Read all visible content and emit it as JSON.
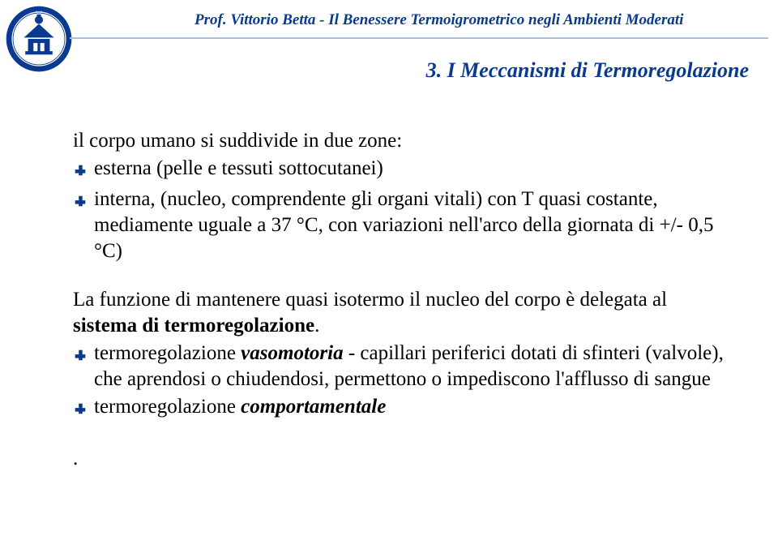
{
  "header": {
    "title": "Prof. Vittorio Betta - Il Benessere Termoigrometrico negli Ambienti Moderati",
    "color": "#0a3a8f"
  },
  "section_title": {
    "text": "3. I Meccanismi di Termoregolazione",
    "color": "#0a3a8f"
  },
  "body": {
    "intro": "il corpo umano si suddivide in due zone:",
    "bullets_1": [
      "esterna (pelle e tessuti sottocutanei)",
      "interna, (nucleo, comprendente gli organi vitali) con T quasi  costante, mediamente uguale a 37 °C, con variazioni nell'arco della giornata di +/- 0,5 °C)"
    ],
    "paragraph_prefix": "La funzione di mantenere quasi isotermo il nucleo del corpo è delegata al ",
    "paragraph_bold": "sistema di termoregolazione",
    "paragraph_suffix": ".",
    "bullets_2": [
      {
        "pre": "termoregolazione ",
        "em": "vasomotoria",
        "post": " - capillari periferici dotati di sfinteri (valvole), che aprendosi o chiudendosi, permettono o impediscono l'afflusso di sangue"
      },
      {
        "pre": "termoregolazione ",
        "em": "comportamentale",
        "post": ""
      }
    ],
    "bullet_color": "#0a3a8f",
    "text_color": "#000000"
  },
  "seal": {
    "ring_color": "#0a3a8f",
    "inner_color": "#ffffff"
  },
  "rule_color": "#aabedd"
}
